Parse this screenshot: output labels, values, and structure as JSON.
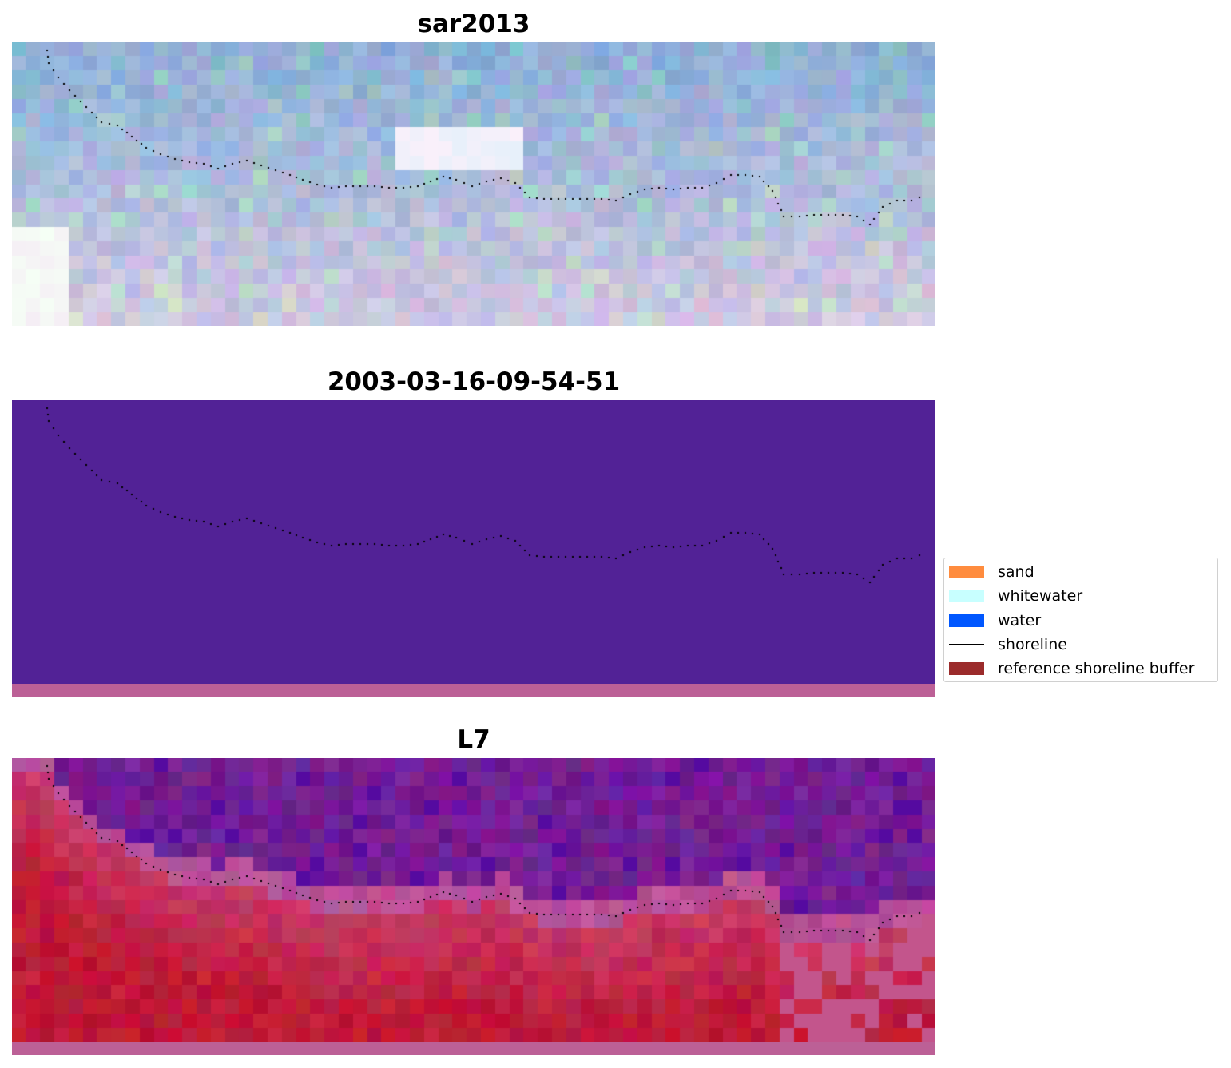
{
  "panels": [
    {
      "title": "sar2013",
      "style": "sar"
    },
    {
      "title": "2003-03-16-09-54-51",
      "style": "classified"
    },
    {
      "title": "L7",
      "style": "ndwi"
    }
  ],
  "legend": {
    "items": [
      {
        "label": "sand",
        "color": "#ff8c3e",
        "kind": "patch"
      },
      {
        "label": "whitewater",
        "color": "#c8ffff",
        "kind": "patch"
      },
      {
        "label": "water",
        "color": "#0057ff",
        "kind": "patch"
      },
      {
        "label": "shoreline",
        "color": "#000000",
        "kind": "line"
      },
      {
        "label": "reference shoreline buffer",
        "color": "#9b2b2b",
        "kind": "patch"
      }
    ]
  },
  "colors": {
    "classified_fill": "#522296",
    "bottom_strip": "#bc6096",
    "shoreline_dots": "#000000"
  }
}
